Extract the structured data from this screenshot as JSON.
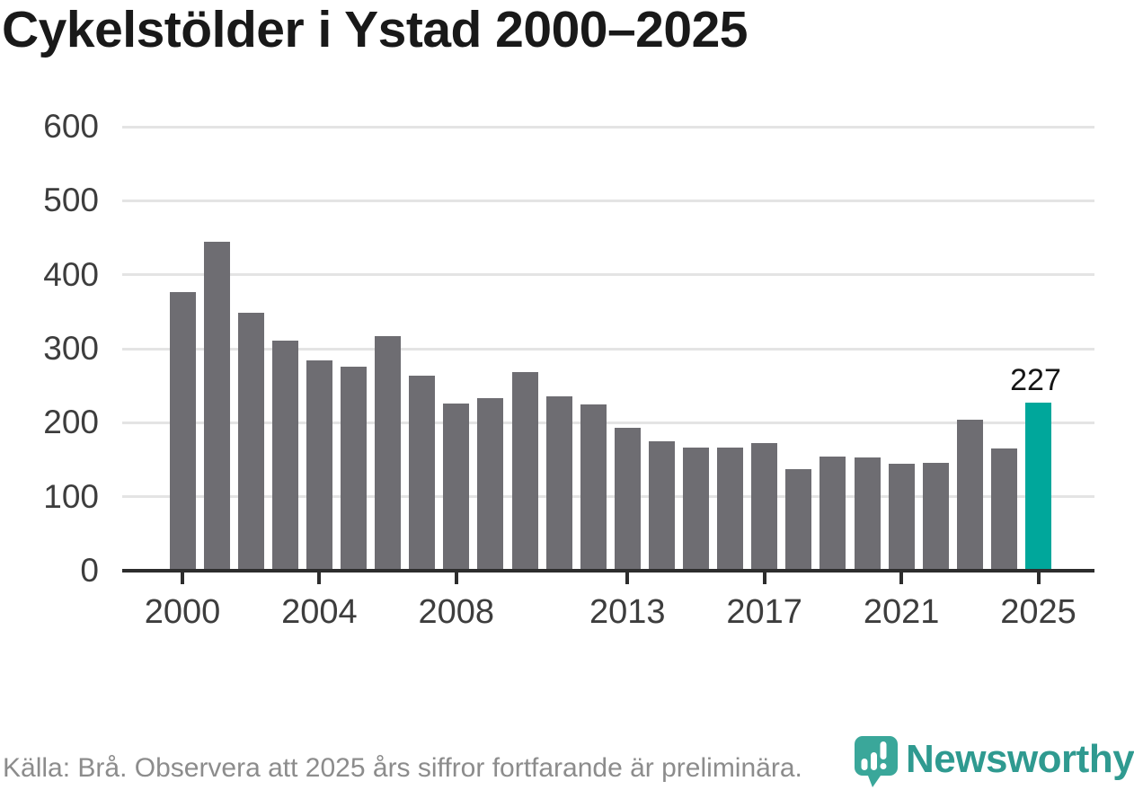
{
  "title": "Cykelstölder i Ystad 2000–2025",
  "chart_data": {
    "type": "bar",
    "categories": [
      2000,
      2001,
      2002,
      2003,
      2004,
      2005,
      2006,
      2007,
      2008,
      2009,
      2010,
      2011,
      2012,
      2013,
      2014,
      2015,
      2016,
      2017,
      2018,
      2019,
      2020,
      2021,
      2022,
      2023,
      2024,
      2025
    ],
    "values": [
      377,
      444,
      348,
      311,
      284,
      276,
      317,
      264,
      226,
      233,
      268,
      236,
      225,
      193,
      175,
      166,
      167,
      172,
      137,
      154,
      153,
      145,
      146,
      204,
      165,
      227
    ],
    "title": "Cykelstölder i Ystad 2000–2025",
    "xlabel": "",
    "ylabel": "",
    "ylim": [
      0,
      600
    ],
    "y_tick_values": [
      0,
      100,
      200,
      300,
      400,
      500,
      600
    ],
    "x_tick_years": [
      2000,
      2004,
      2008,
      2013,
      2017,
      2021,
      2025
    ],
    "grid": "horizontal",
    "legend": "none",
    "bar_color": "#6e6d72",
    "highlight_color": "#00a79b",
    "highlight_index": 25,
    "annotation_label": "227"
  },
  "footer": {
    "source_text": "Källa: Brå. Observera att 2025 års siffror fortfarande är preliminära."
  },
  "logo": {
    "wordmark": "Newsworthy",
    "badge_icon": "bar-chart-bubble-icon",
    "badge_color": "#3aa79a",
    "wordmark_color": "#2f9a90"
  }
}
